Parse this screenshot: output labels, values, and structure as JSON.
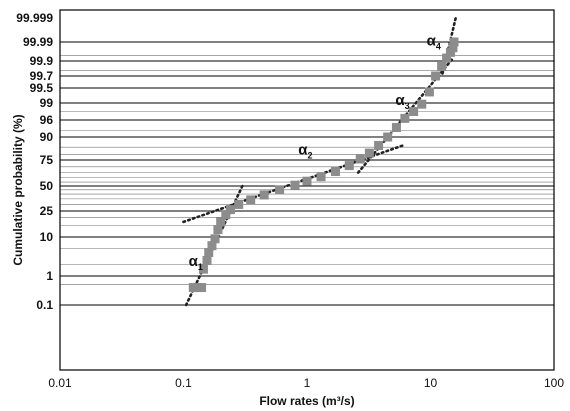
{
  "chart_data": {
    "type": "scatter",
    "xscale": "log",
    "yscale": "normal-probability",
    "xlabel": "Flow rates (m³/s)",
    "ylabel": "Cumulative probability (%)",
    "xlim": [
      0.01,
      100
    ],
    "x_ticks": [
      "0.01",
      "0.1",
      "1",
      "10",
      "100"
    ],
    "y_ticks": [
      "0.1",
      "1",
      "10",
      "25",
      "50",
      "75",
      "90",
      "96",
      "99",
      "99.5",
      "99.7",
      "99.9",
      "99.99",
      "99.999"
    ],
    "grid": true,
    "legend": "none",
    "annotations": [
      {
        "greek": "α",
        "sub": "1",
        "x": 0.11,
        "y": 1.8
      },
      {
        "greek": "α",
        "sub": "2",
        "x": 0.85,
        "y": 80
      },
      {
        "greek": "α",
        "sub": "3",
        "x": 5.2,
        "y": 98.8
      },
      {
        "greek": "α",
        "sub": "4",
        "x": 9.3,
        "y": 99.985
      }
    ],
    "colors": {
      "observed": "#8c8c8c",
      "fit": "#222222",
      "grid": "#000000"
    },
    "observed": [
      {
        "x": 0.12,
        "y": 0.4
      },
      {
        "x": 0.13,
        "y": 0.4
      },
      {
        "x": 0.14,
        "y": 0.4
      },
      {
        "x": 0.145,
        "y": 1.5
      },
      {
        "x": 0.155,
        "y": 2.5
      },
      {
        "x": 0.16,
        "y": 4
      },
      {
        "x": 0.17,
        "y": 6
      },
      {
        "x": 0.18,
        "y": 9
      },
      {
        "x": 0.19,
        "y": 13
      },
      {
        "x": 0.2,
        "y": 17
      },
      {
        "x": 0.22,
        "y": 22
      },
      {
        "x": 0.24,
        "y": 26
      },
      {
        "x": 0.28,
        "y": 30
      },
      {
        "x": 0.35,
        "y": 34
      },
      {
        "x": 0.45,
        "y": 39
      },
      {
        "x": 0.6,
        "y": 45
      },
      {
        "x": 0.8,
        "y": 51
      },
      {
        "x": 1.0,
        "y": 56
      },
      {
        "x": 1.3,
        "y": 61
      },
      {
        "x": 1.7,
        "y": 66
      },
      {
        "x": 2.2,
        "y": 71
      },
      {
        "x": 2.7,
        "y": 76
      },
      {
        "x": 3.2,
        "y": 81
      },
      {
        "x": 3.8,
        "y": 86
      },
      {
        "x": 4.5,
        "y": 90
      },
      {
        "x": 5.3,
        "y": 94
      },
      {
        "x": 6.2,
        "y": 96.5
      },
      {
        "x": 7.3,
        "y": 98
      },
      {
        "x": 8.5,
        "y": 98.9
      },
      {
        "x": 9.8,
        "y": 99.4
      },
      {
        "x": 11,
        "y": 99.7
      },
      {
        "x": 12.3,
        "y": 99.85
      },
      {
        "x": 13.5,
        "y": 99.93
      },
      {
        "x": 14.5,
        "y": 99.965
      },
      {
        "x": 15.2,
        "y": 99.98
      },
      {
        "x": 15.5,
        "y": 99.99
      }
    ],
    "fit_lines": [
      {
        "name": "α1",
        "points": [
          {
            "x": 0.105,
            "y": 0.1
          },
          {
            "x": 0.3,
            "y": 50
          }
        ]
      },
      {
        "name": "α2",
        "points": [
          {
            "x": 0.1,
            "y": 17
          },
          {
            "x": 6,
            "y": 86
          }
        ]
      },
      {
        "name": "α3",
        "points": [
          {
            "x": 2.6,
            "y": 65
          },
          {
            "x": 15,
            "y": 99.92
          }
        ]
      },
      {
        "name": "α4",
        "points": [
          {
            "x": 12.5,
            "y": 99.75
          },
          {
            "x": 16,
            "y": 99.999
          }
        ]
      }
    ]
  }
}
